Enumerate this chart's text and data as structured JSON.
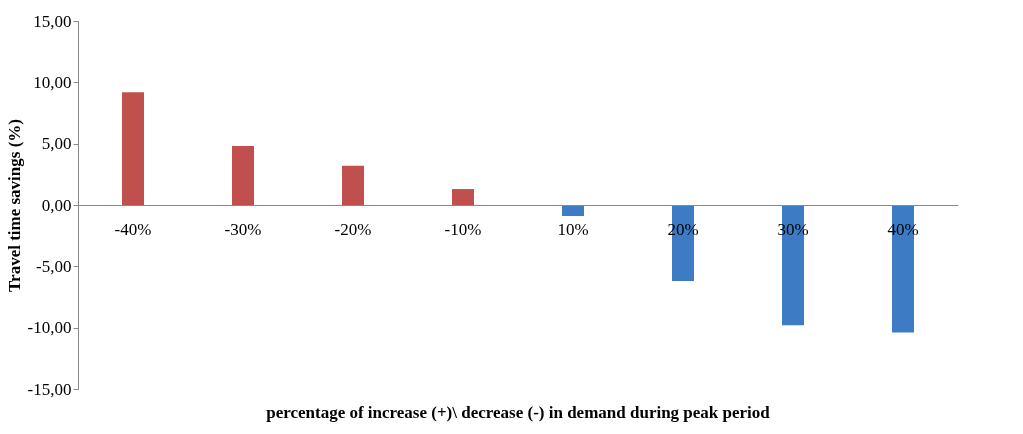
{
  "chart_data": {
    "type": "bar",
    "ylabel": "Travel time savings (%)",
    "xlabel": "percentage of increase (+)\\ decrease (-) in demand during peak period",
    "categories": [
      "-40%",
      "-30%",
      "-20%",
      "-10%",
      "10%",
      "20%",
      "30%",
      "40%"
    ],
    "values": [
      9.2,
      4.8,
      3.2,
      1.3,
      -0.9,
      -6.2,
      -9.8,
      -10.4
    ],
    "colors": [
      "#c0504d",
      "#c0504d",
      "#c0504d",
      "#c0504d",
      "#3d7cc4",
      "#3d7cc4",
      "#3d7cc4",
      "#3d7cc4"
    ],
    "ylim": [
      -15,
      15
    ],
    "yticks": [
      {
        "value": -15,
        "label": "-15,00"
      },
      {
        "value": -10,
        "label": "-10,00"
      },
      {
        "value": -5,
        "label": "-5,00"
      },
      {
        "value": 0,
        "label": "0,00"
      },
      {
        "value": 5,
        "label": "5,00"
      },
      {
        "value": 10,
        "label": "10,00"
      },
      {
        "value": 15,
        "label": "15,00"
      }
    ],
    "grid": false
  }
}
